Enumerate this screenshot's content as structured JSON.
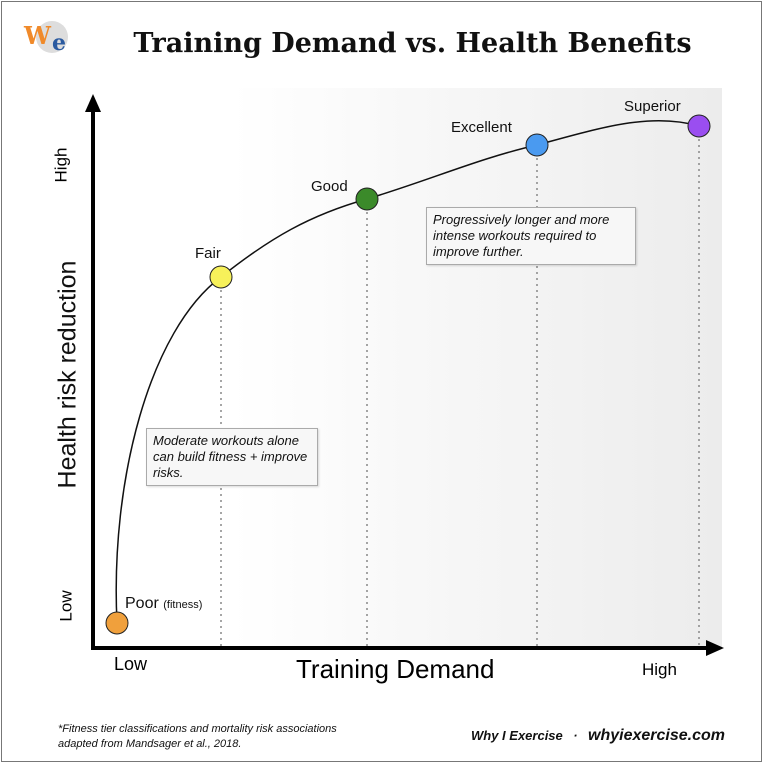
{
  "title": "Training Demand vs. Health Benefits",
  "logo": {
    "text": "WIe"
  },
  "y_axis": {
    "label": "Health risk reduction",
    "low": "Low",
    "high": "High"
  },
  "x_axis": {
    "label": "Training Demand",
    "low": "Low",
    "high": "High"
  },
  "points": [
    {
      "label": "Poor",
      "sublabel": "(fitness)",
      "color": "#f0a03c"
    },
    {
      "label": "Fair",
      "color": "#f7f15a"
    },
    {
      "label": "Good",
      "color": "#3b8a2a"
    },
    {
      "label": "Excellent",
      "color": "#4a9af0"
    },
    {
      "label": "Superior",
      "color": "#9a4ef0"
    }
  ],
  "notes": {
    "moderate": "Moderate workouts alone can build fitness + improve risks.",
    "progressive": "Progressively longer and more intense workouts required to improve further."
  },
  "footer": {
    "citation_line1": "*Fitness tier classifications and mortality risk associations",
    "citation_line2": "adapted from Mandsager et al., 2018.",
    "brand": "Why I Exercise",
    "separator": "·",
    "site": "whyiexercise.com"
  }
}
